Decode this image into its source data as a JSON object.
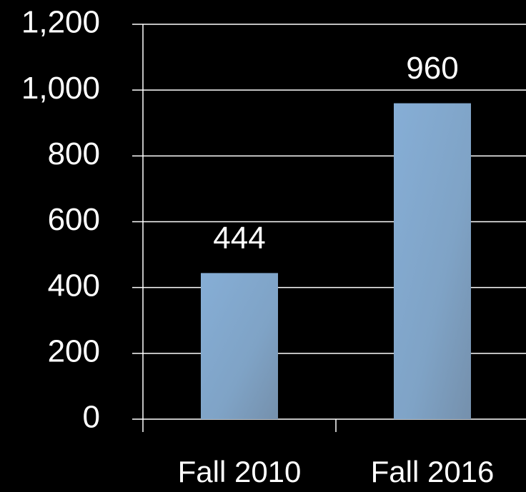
{
  "chart_data": {
    "type": "bar",
    "categories": [
      "Fall 2010",
      "Fall 2016"
    ],
    "values": [
      444,
      960
    ],
    "color": "#7fa6cc",
    "ylim": [
      0,
      1200
    ],
    "yticks": [
      0,
      200,
      400,
      600,
      800,
      {
        "value": 1000,
        "label": "1,000"
      },
      {
        "value": 1200,
        "label": "1,200"
      }
    ],
    "grid": true
  }
}
